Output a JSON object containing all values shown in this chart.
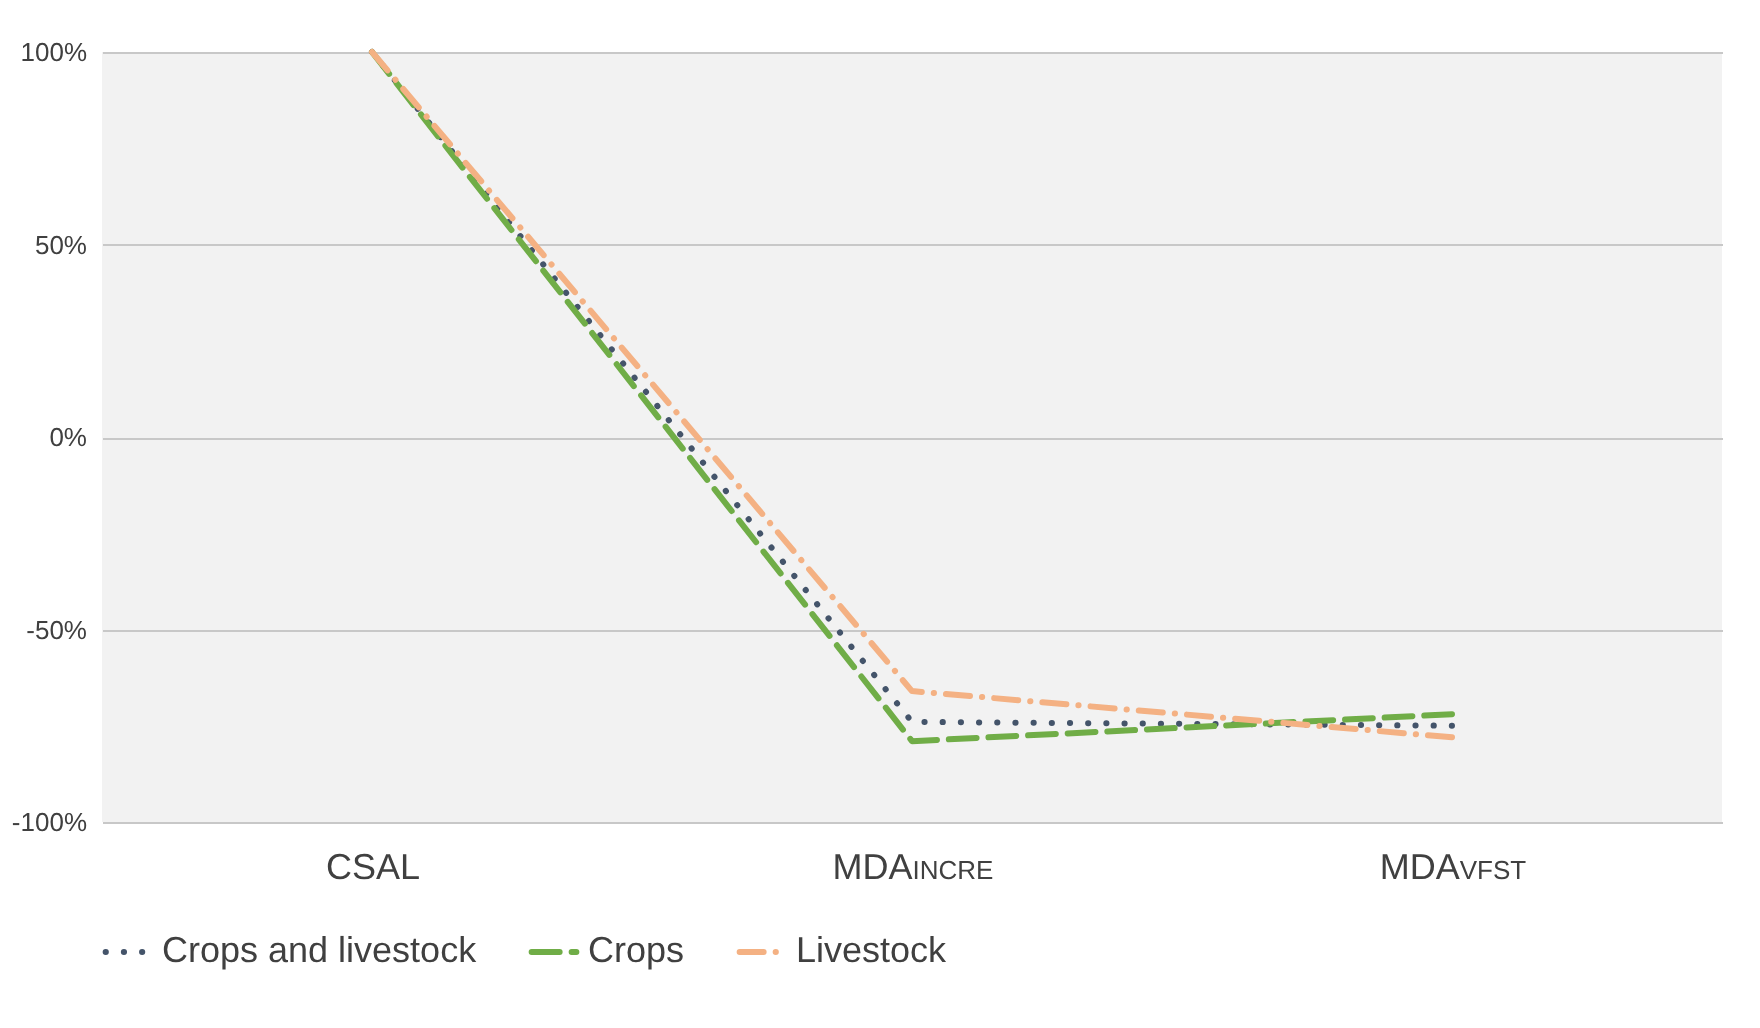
{
  "chart_data": {
    "type": "line",
    "categories": [
      "CSAL",
      "MDA$_{INCRE}$",
      "MDA$_{VFST}$"
    ],
    "series": [
      {
        "name": "Crops and livestock",
        "color": "#44546a",
        "line_style": "dotted",
        "values": [
          100,
          -74,
          -75
        ]
      },
      {
        "name": "Crops",
        "color": "#70ad47",
        "line_style": "dashed",
        "values": [
          100,
          -79,
          -72
        ]
      },
      {
        "name": "Livestock",
        "color": "#f4b183",
        "line_style": "dashdot",
        "values": [
          100,
          -66,
          -78
        ]
      }
    ],
    "ylim": [
      -100,
      100
    ],
    "yticks": [
      {
        "value": -100,
        "label": "-100%"
      },
      {
        "value": -50,
        "label": "-50%"
      },
      {
        "value": 0,
        "label": "0%"
      },
      {
        "value": 50,
        "label": "50%"
      },
      {
        "value": 100,
        "label": "100%"
      }
    ],
    "grid": "y",
    "legend": "bottom"
  }
}
